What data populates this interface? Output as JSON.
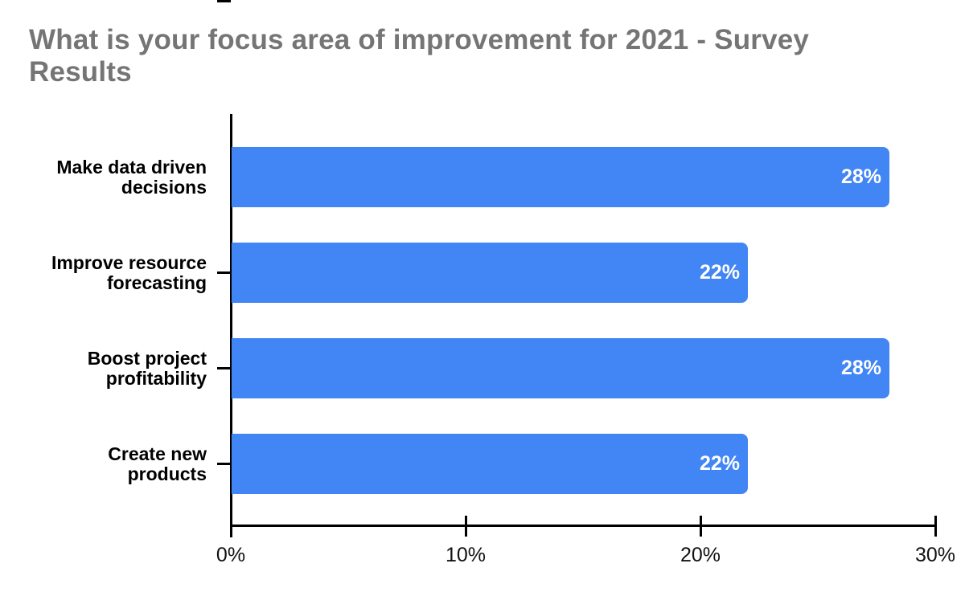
{
  "title": "What is your focus area of improvement for 2021 - Survey\nResults",
  "chart_data": {
    "type": "bar",
    "orientation": "horizontal",
    "title": "What is your focus area of improvement for 2021 - Survey Results",
    "categories": [
      "Make data driven\ndecisions",
      "Improve resource\nforecasting",
      "Boost project\nprofitability",
      "Create new\nproducts"
    ],
    "values": [
      28,
      22,
      28,
      22
    ],
    "data_labels": [
      "28%",
      "22%",
      "28%",
      "22%"
    ],
    "x_ticks": [
      0,
      10,
      20,
      30
    ],
    "x_tick_labels": [
      "0%",
      "10%",
      "20%",
      "30%"
    ],
    "xlim": [
      0,
      30
    ],
    "xlabel": "",
    "ylabel": "",
    "grid": false,
    "legend_position": "none",
    "bar_color": "#4285F4",
    "data_label_color": "#FFFFFF",
    "title_color": "#757575",
    "axis_line_color": "#000000",
    "axis_label_color": "#111111",
    "category_label_color": "#000000"
  }
}
